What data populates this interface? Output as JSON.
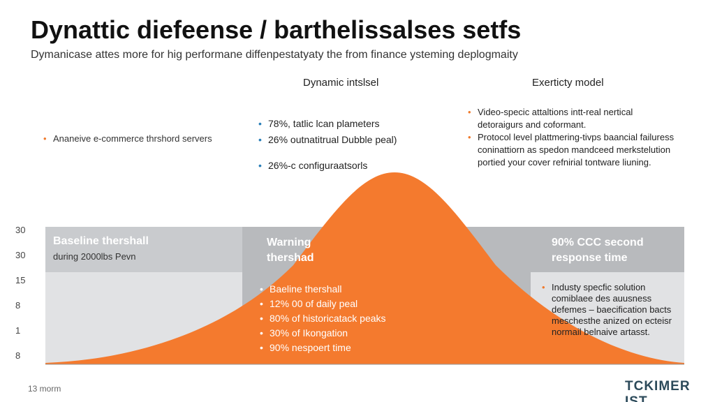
{
  "header": {
    "title": "Dynattic diefeense / barthelissalses setfs",
    "subtitle": "Dymanicase attes more for hig performane diffenpestatyaty the from finance ysteming deplogmaity"
  },
  "left_note": {
    "bullets": [
      "Ananeive e-commerce thrshord servers"
    ]
  },
  "columns": [
    {
      "heading": "Dynamic intslsel",
      "bullets": [
        "78%, tatlic lcan plameters",
        "26% outnatitrual Dubble peal)",
        "26%-c configuraatsorls"
      ]
    },
    {
      "heading": "Exerticty model",
      "bullets": [
        "Video-specic attaltions intt-real nertical detoraigurs and coformant.",
        "Protocol level plattmering-tivps baancial failuress coninattiorn as spedon mandceed merkstelution portied your cover refnirial tontware liuning."
      ]
    }
  ],
  "y_labels": [
    "30",
    "30",
    "15",
    "8",
    "1",
    "8"
  ],
  "bands": [
    {
      "title": "Baseline thershall",
      "subtitle": "during 2000lbs Pevn"
    },
    {
      "title": "Warning thershad",
      "bullets": [
        "Baeline thershall",
        "12% 00 of daily peal",
        "80% of historicatack peaks",
        "30% of Ikongation",
        "90% nespoert time"
      ]
    },
    {
      "title": "90% CCC second response time",
      "bullets": [
        "Industy specfic solution comiblaee des auusness defemes – baecification bacts meschesthe anized on ecteisr normail belnaive artasst."
      ]
    }
  ],
  "footer": {
    "note": "13 morm",
    "brand": "TCKIMER IST"
  }
}
